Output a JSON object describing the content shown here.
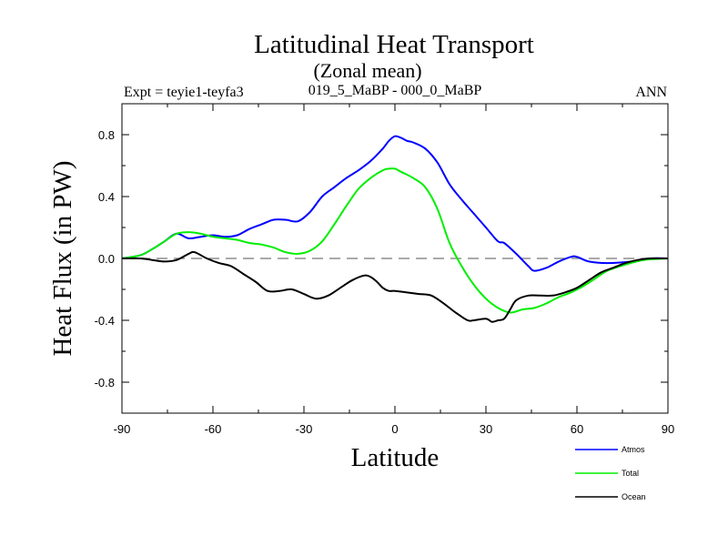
{
  "chart_data": {
    "type": "line",
    "title": "Latitudinal Heat Transport",
    "subtitle": "(Zonal mean)",
    "left_label": "Expt = teyie1-teyfa3",
    "center_label": "019_5_MaBP - 000_0_MaBP",
    "right_label": "ANN",
    "xlabel": "Latitude",
    "ylabel": "Heat Flux (in PW)",
    "xlim": [
      -90,
      90
    ],
    "ylim": [
      -1.0,
      1.0
    ],
    "xticks": [
      -90,
      -60,
      -30,
      0,
      30,
      60,
      90
    ],
    "xtick_labels": [
      "-90",
      "-60",
      "-30",
      "0",
      "30",
      "60",
      "90"
    ],
    "yticks": [
      -0.8,
      -0.4,
      0.0,
      0.4,
      0.8
    ],
    "ytick_labels": [
      "-0.8",
      "-0.4",
      "0.0",
      "0.4",
      "0.8"
    ],
    "zero_line": true,
    "series": [
      {
        "name": "Atmos",
        "color": "#0000ff",
        "x": [
          -90,
          -84,
          -80,
          -76,
          -72,
          -68,
          -64,
          -60,
          -56,
          -52,
          -48,
          -44,
          -40,
          -36,
          -32,
          -28,
          -24,
          -20,
          -16,
          -12,
          -8,
          -4,
          -2,
          0,
          2,
          4,
          6,
          10,
          14,
          18,
          22,
          26,
          30,
          34,
          36,
          40,
          44,
          46,
          50,
          54,
          58,
          60,
          64,
          70,
          78,
          84,
          90
        ],
        "y": [
          0.0,
          0.02,
          0.06,
          0.11,
          0.16,
          0.13,
          0.14,
          0.15,
          0.14,
          0.15,
          0.19,
          0.22,
          0.25,
          0.25,
          0.24,
          0.3,
          0.4,
          0.46,
          0.52,
          0.57,
          0.63,
          0.71,
          0.76,
          0.79,
          0.78,
          0.76,
          0.75,
          0.71,
          0.62,
          0.48,
          0.38,
          0.29,
          0.2,
          0.11,
          0.1,
          0.03,
          -0.05,
          -0.08,
          -0.06,
          -0.02,
          0.01,
          0.01,
          -0.02,
          -0.03,
          -0.02,
          0.0,
          0.0
        ]
      },
      {
        "name": "Total",
        "color": "#00ee00",
        "x": [
          -90,
          -84,
          -80,
          -76,
          -72,
          -68,
          -64,
          -60,
          -56,
          -52,
          -48,
          -44,
          -40,
          -36,
          -32,
          -28,
          -24,
          -20,
          -16,
          -12,
          -8,
          -4,
          -2,
          0,
          2,
          6,
          10,
          14,
          18,
          22,
          26,
          30,
          34,
          38,
          42,
          46,
          50,
          54,
          58,
          62,
          66,
          70,
          76,
          82,
          90
        ],
        "y": [
          0.0,
          0.02,
          0.06,
          0.11,
          0.16,
          0.17,
          0.16,
          0.14,
          0.13,
          0.12,
          0.1,
          0.09,
          0.07,
          0.04,
          0.03,
          0.05,
          0.11,
          0.22,
          0.34,
          0.45,
          0.52,
          0.57,
          0.58,
          0.58,
          0.56,
          0.52,
          0.46,
          0.32,
          0.1,
          -0.05,
          -0.17,
          -0.26,
          -0.32,
          -0.35,
          -0.33,
          -0.32,
          -0.29,
          -0.25,
          -0.22,
          -0.18,
          -0.13,
          -0.08,
          -0.04,
          -0.01,
          0.0
        ]
      },
      {
        "name": "Ocean",
        "color": "#000000",
        "x": [
          -90,
          -84,
          -80,
          -76,
          -72,
          -68,
          -66,
          -62,
          -58,
          -54,
          -50,
          -46,
          -42,
          -38,
          -34,
          -30,
          -26,
          -22,
          -18,
          -14,
          -10,
          -8,
          -6,
          -4,
          -2,
          0,
          4,
          8,
          12,
          16,
          20,
          24,
          26,
          30,
          32,
          34,
          36,
          38,
          40,
          44,
          48,
          52,
          56,
          60,
          64,
          68,
          72,
          76,
          80,
          84,
          90
        ],
        "y": [
          0.0,
          0.0,
          -0.01,
          -0.02,
          -0.01,
          0.03,
          0.04,
          0.0,
          -0.03,
          -0.05,
          -0.1,
          -0.15,
          -0.21,
          -0.21,
          -0.2,
          -0.23,
          -0.26,
          -0.24,
          -0.19,
          -0.14,
          -0.11,
          -0.12,
          -0.15,
          -0.19,
          -0.21,
          -0.21,
          -0.22,
          -0.23,
          -0.24,
          -0.29,
          -0.35,
          -0.4,
          -0.4,
          -0.39,
          -0.41,
          -0.4,
          -0.39,
          -0.33,
          -0.27,
          -0.24,
          -0.24,
          -0.24,
          -0.22,
          -0.19,
          -0.14,
          -0.09,
          -0.06,
          -0.03,
          -0.01,
          0.0,
          0.0
        ]
      }
    ]
  }
}
